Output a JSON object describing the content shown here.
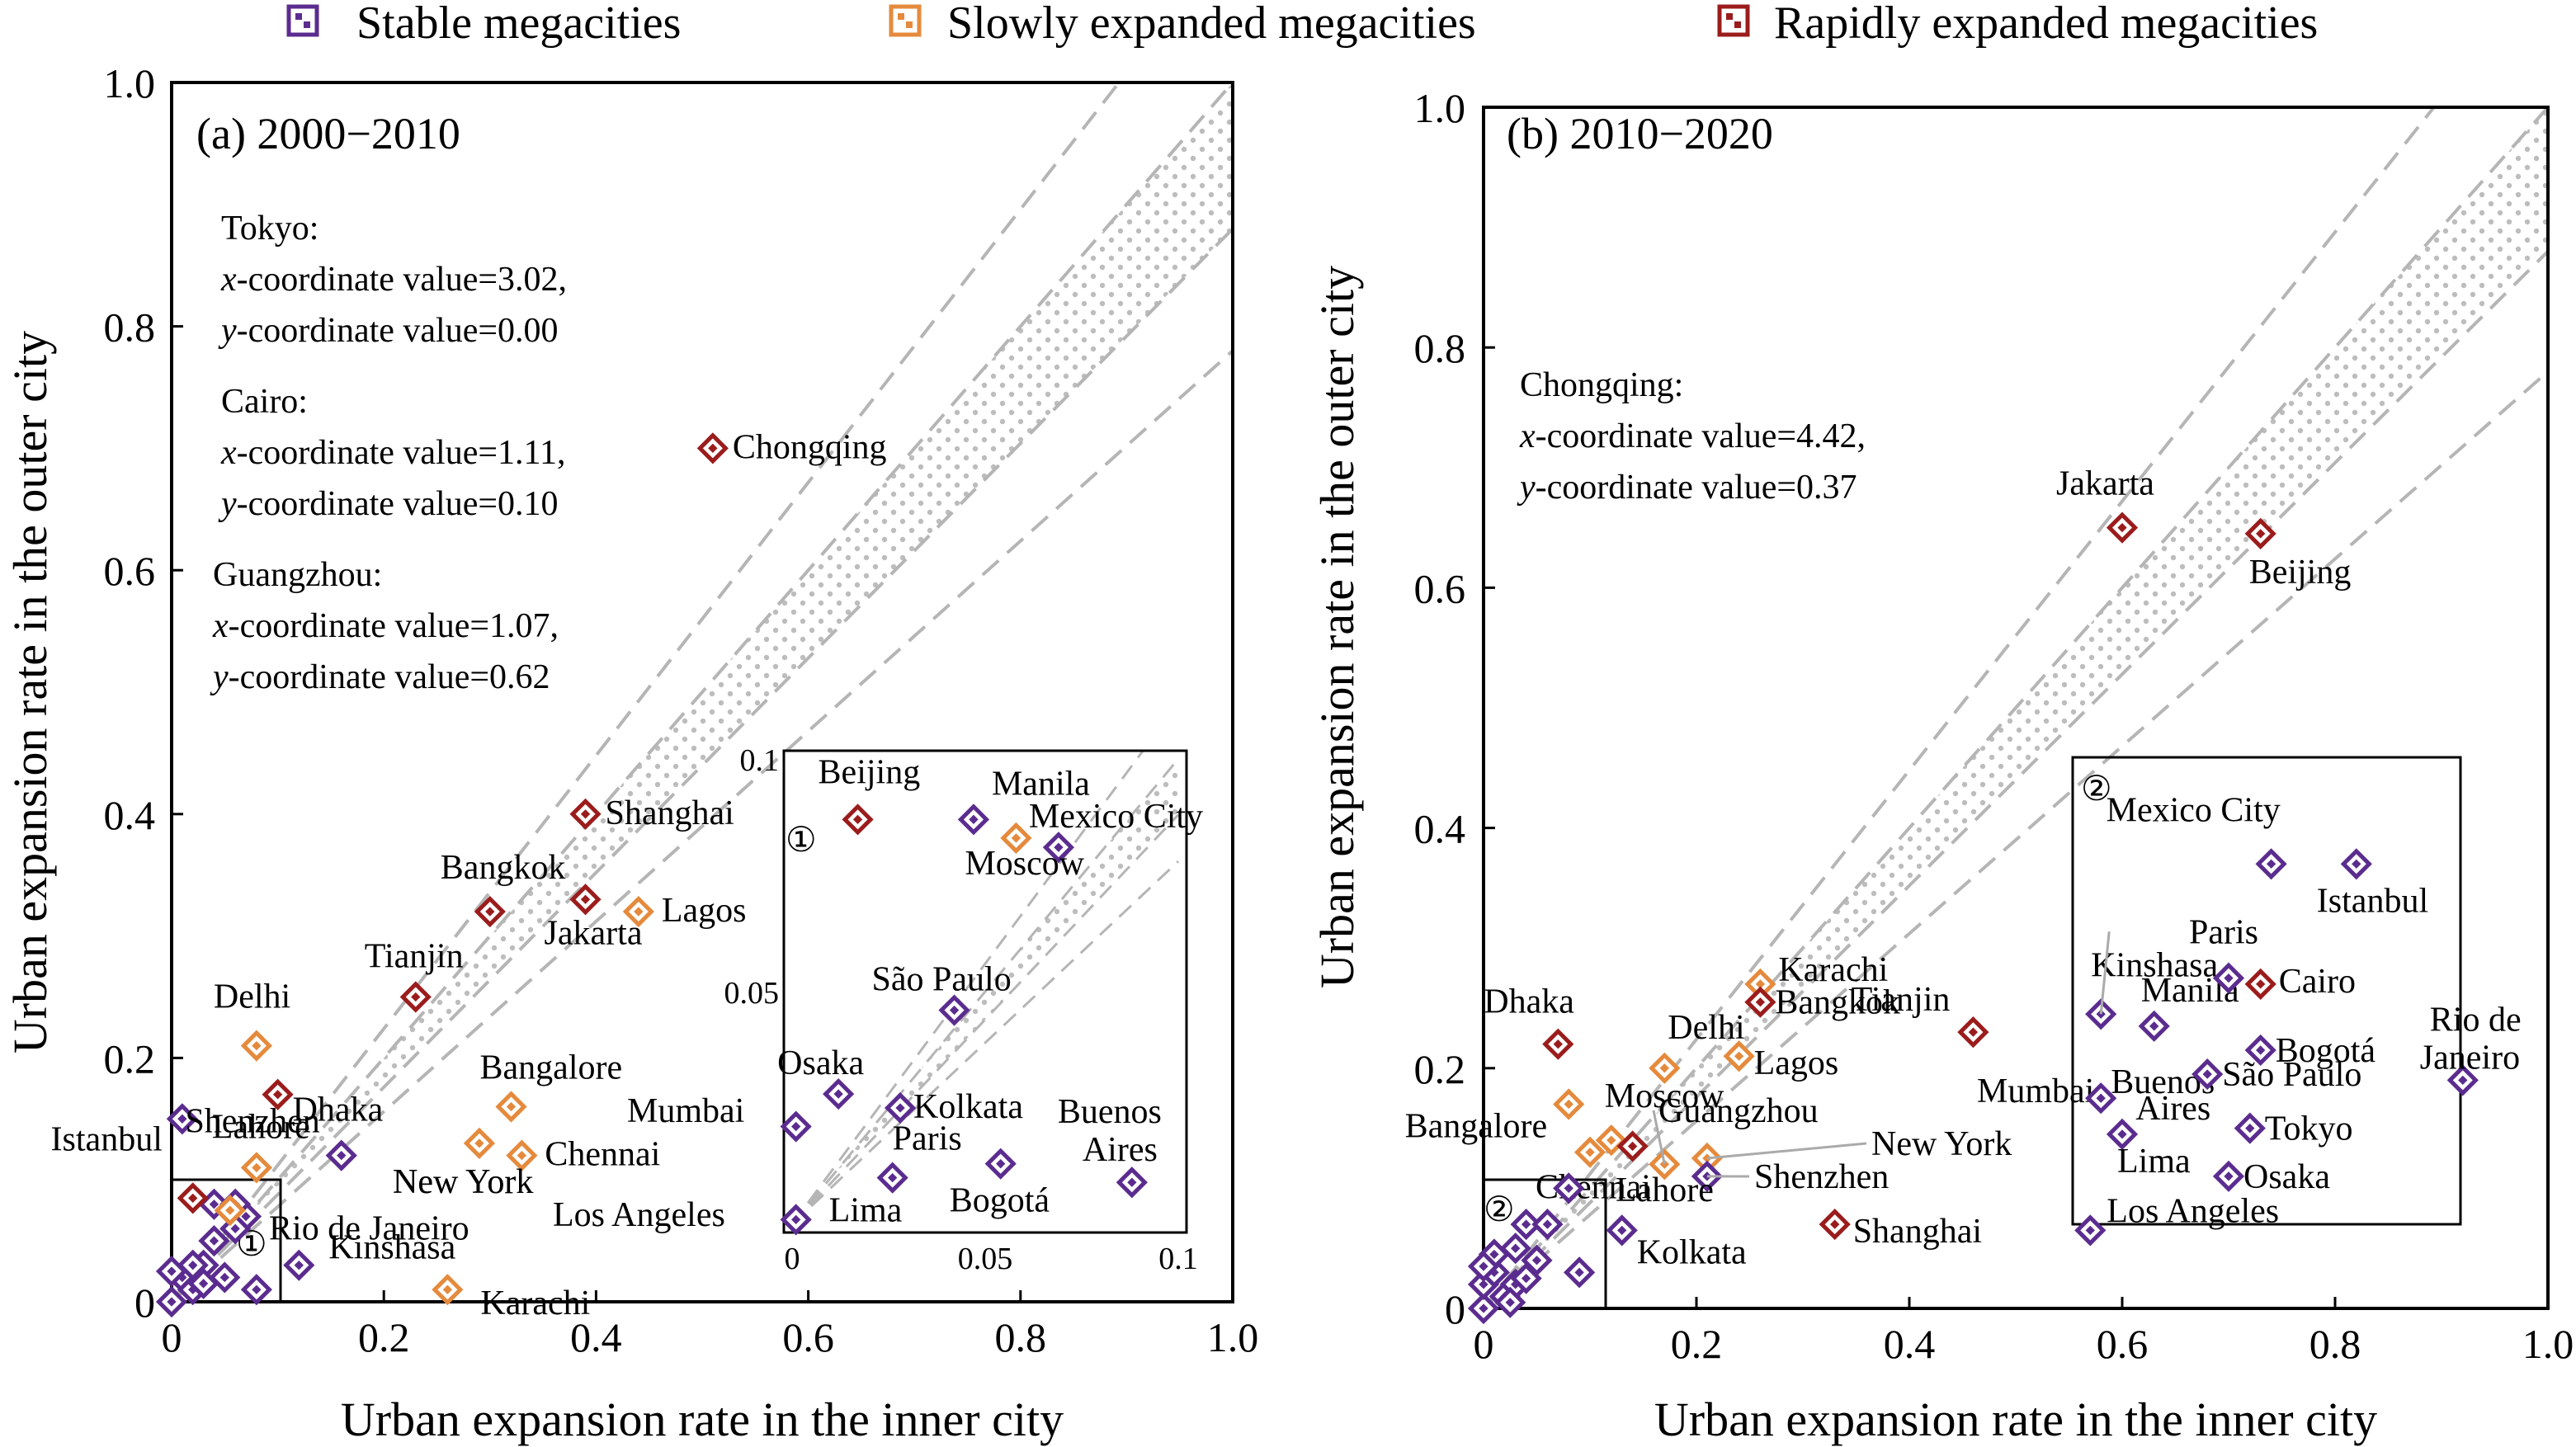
{
  "legend": [
    {
      "label": "Stable megacities",
      "color": "#5b2c8f"
    },
    {
      "label": "Slowly expanded megacities",
      "color": "#e58a3c"
    },
    {
      "label": "Rapidly expanded megacities",
      "color": "#9b1c1c"
    }
  ],
  "chart_data": [
    {
      "type": "scatter",
      "title": "(a) 2000−2010",
      "xlabel": "Urban expansion rate in the inner city",
      "ylabel": "Urban expansion rate in the outer city",
      "xlim": [
        0,
        1.0
      ],
      "ylim": [
        0,
        1.0
      ],
      "xticks": [
        "0",
        "0.2",
        "0.4",
        "0.6",
        "0.8",
        "1.0"
      ],
      "yticks": [
        "0",
        "0.2",
        "0.4",
        "0.6",
        "0.8",
        "1.0"
      ],
      "annotations": [
        {
          "city": "Tokyo:",
          "x_text": "x-coordinate value=3.02,",
          "y_text": "y-coordinate value=0.00"
        },
        {
          "city": "Cairo:",
          "x_text": "x-coordinate value=1.11,",
          "y_text": "y-coordinate value=0.10"
        },
        {
          "city": "Guangzhou:",
          "x_text": "x-coordinate value=1.07,",
          "y_text": "y-coordinate value=0.62"
        }
      ],
      "points": [
        {
          "name": "Chongqing",
          "x": 0.51,
          "y": 0.7,
          "group": 2
        },
        {
          "name": "Shanghai",
          "x": 0.39,
          "y": 0.4,
          "group": 2
        },
        {
          "name": "Bangkok",
          "x": 0.3,
          "y": 0.32,
          "group": 2
        },
        {
          "name": "Jakarta",
          "x": 0.39,
          "y": 0.33,
          "group": 2
        },
        {
          "name": "Lagos",
          "x": 0.44,
          "y": 0.32,
          "group": 1
        },
        {
          "name": "Tianjin",
          "x": 0.23,
          "y": 0.25,
          "group": 2
        },
        {
          "name": "Delhi",
          "x": 0.08,
          "y": 0.21,
          "group": 1
        },
        {
          "name": "Dhaka",
          "x": 0.1,
          "y": 0.17,
          "group": 2
        },
        {
          "name": "Istanbul",
          "x": 0.01,
          "y": 0.15,
          "group": 0
        },
        {
          "name": "Bangalore",
          "x": 0.32,
          "y": 0.16,
          "group": 1
        },
        {
          "name": "Lahore",
          "x": 0.08,
          "y": 0.11,
          "group": 1
        },
        {
          "name": "Shenzhen",
          "x": 0.16,
          "y": 0.12,
          "group": 0
        },
        {
          "name": "Mumbai",
          "x": 0.29,
          "y": 0.13,
          "group": 1
        },
        {
          "name": "Chennai",
          "x": 0.33,
          "y": 0.12,
          "group": 1
        },
        {
          "name": "Rio de Janeiro",
          "x": 0.07,
          "y": 0.07,
          "group": 0
        },
        {
          "name": "Kinshasa",
          "x": 0.12,
          "y": 0.03,
          "group": 0
        },
        {
          "name": "Karachi",
          "x": 0.26,
          "y": 0.01,
          "group": 1
        }
      ],
      "inset": {
        "marker": "①",
        "xlim": [
          0,
          0.1
        ],
        "ylim": [
          0,
          0.1
        ],
        "xticks": [
          "0",
          "0.05",
          "0.1"
        ],
        "yticks": [
          "0.05",
          "0.1"
        ],
        "points": [
          {
            "name": "Beijing",
            "x": 0.017,
            "y": 0.087,
            "group": 2
          },
          {
            "name": "Manila",
            "x": 0.047,
            "y": 0.087,
            "group": 0
          },
          {
            "name": "Mexico City",
            "x": 0.069,
            "y": 0.081,
            "group": 0
          },
          {
            "name": "Moscow",
            "x": 0.058,
            "y": 0.083,
            "group": 1
          },
          {
            "name": "São Paulo",
            "x": 0.042,
            "y": 0.046,
            "group": 0
          },
          {
            "name": "Osaka",
            "x": 0.012,
            "y": 0.028,
            "group": 0
          },
          {
            "name": "Kolkata",
            "x": 0.028,
            "y": 0.025,
            "group": 0
          },
          {
            "name": "Buenos Aires",
            "x": 0.088,
            "y": 0.009,
            "group": 0
          },
          {
            "name": "Paris",
            "x": 0.026,
            "y": 0.01,
            "group": 0
          },
          {
            "name": "Bogotá",
            "x": 0.054,
            "y": 0.013,
            "group": 0
          },
          {
            "name": "Los Angeles",
            "x": 0.001,
            "y": 0.021,
            "group": 0
          },
          {
            "name": "Lima",
            "x": 0.001,
            "y": 0.001,
            "group": 0
          }
        ]
      }
    },
    {
      "type": "scatter",
      "title": "(b) 2010−2020",
      "xlabel": "Urban expansion rate in the inner city",
      "ylabel": "Urban expansion rate in the outer city",
      "xlim": [
        0,
        1.0
      ],
      "ylim": [
        0,
        1.0
      ],
      "xticks": [
        "0",
        "0.2",
        "0.4",
        "0.6",
        "0.8",
        "1.0"
      ],
      "yticks": [
        "0",
        "0.2",
        "0.4",
        "0.6",
        "0.8",
        "1.0"
      ],
      "annotations": [
        {
          "city": "Chongqing:",
          "x_text": "x-coordinate value=4.42,",
          "y_text": "y-coordinate value=0.37"
        }
      ],
      "points": [
        {
          "name": "Jakarta",
          "x": 0.6,
          "y": 0.65,
          "group": 2
        },
        {
          "name": "Beijing",
          "x": 0.73,
          "y": 0.645,
          "group": 2
        },
        {
          "name": "Karachi",
          "x": 0.26,
          "y": 0.27,
          "group": 1
        },
        {
          "name": "Bangkok",
          "x": 0.26,
          "y": 0.255,
          "group": 2
        },
        {
          "name": "Tianjin",
          "x": 0.46,
          "y": 0.23,
          "group": 2
        },
        {
          "name": "Dhaka",
          "x": 0.07,
          "y": 0.22,
          "group": 2
        },
        {
          "name": "Delhi",
          "x": 0.17,
          "y": 0.2,
          "group": 1
        },
        {
          "name": "Lagos",
          "x": 0.24,
          "y": 0.21,
          "group": 1
        },
        {
          "name": "Bangalore",
          "x": 0.08,
          "y": 0.17,
          "group": 1
        },
        {
          "name": "Moscow",
          "x": 0.12,
          "y": 0.14,
          "group": 1
        },
        {
          "name": "Guangzhou",
          "x": 0.17,
          "y": 0.12,
          "group": 1
        },
        {
          "name": "Chennai",
          "x": 0.1,
          "y": 0.13,
          "group": 1
        },
        {
          "name": "Mumbai",
          "x": 0.14,
          "y": 0.135,
          "group": 2
        },
        {
          "name": "New York",
          "x": 0.21,
          "y": 0.125,
          "group": 1
        },
        {
          "name": "Shenzhen",
          "x": 0.21,
          "y": 0.11,
          "group": 0
        },
        {
          "name": "Lahore",
          "x": 0.08,
          "y": 0.1,
          "group": 0
        },
        {
          "name": "Kolkata",
          "x": 0.13,
          "y": 0.065,
          "group": 0
        },
        {
          "name": "Shanghai",
          "x": 0.33,
          "y": 0.07,
          "group": 2
        }
      ],
      "inset": {
        "marker": "②",
        "points": [
          {
            "name": "Mexico City",
            "x": 0.74,
            "y": 0.37,
            "group": 0
          },
          {
            "name": "Istanbul",
            "x": 0.82,
            "y": 0.37,
            "group": 0
          },
          {
            "name": "Kinshasa",
            "x": 0.58,
            "y": 0.245,
            "group": 0
          },
          {
            "name": "Manila",
            "x": 0.63,
            "y": 0.235,
            "group": 0
          },
          {
            "name": "Paris",
            "x": 0.7,
            "y": 0.275,
            "group": 0
          },
          {
            "name": "Cairo",
            "x": 0.73,
            "y": 0.27,
            "group": 2
          },
          {
            "name": "Rio de Janeiro",
            "x": 0.92,
            "y": 0.19,
            "group": 0
          },
          {
            "name": "Bogotá",
            "x": 0.73,
            "y": 0.215,
            "group": 0
          },
          {
            "name": "Buenos Aires",
            "x": 0.58,
            "y": 0.175,
            "group": 0
          },
          {
            "name": "São Paulo",
            "x": 0.68,
            "y": 0.195,
            "group": 0
          },
          {
            "name": "Tokyo",
            "x": 0.72,
            "y": 0.15,
            "group": 0
          },
          {
            "name": "Lima",
            "x": 0.6,
            "y": 0.145,
            "group": 0
          },
          {
            "name": "Osaka",
            "x": 0.7,
            "y": 0.11,
            "group": 0
          },
          {
            "name": "Los Angeles",
            "x": 0.57,
            "y": 0.065,
            "group": 0
          }
        ]
      }
    }
  ]
}
